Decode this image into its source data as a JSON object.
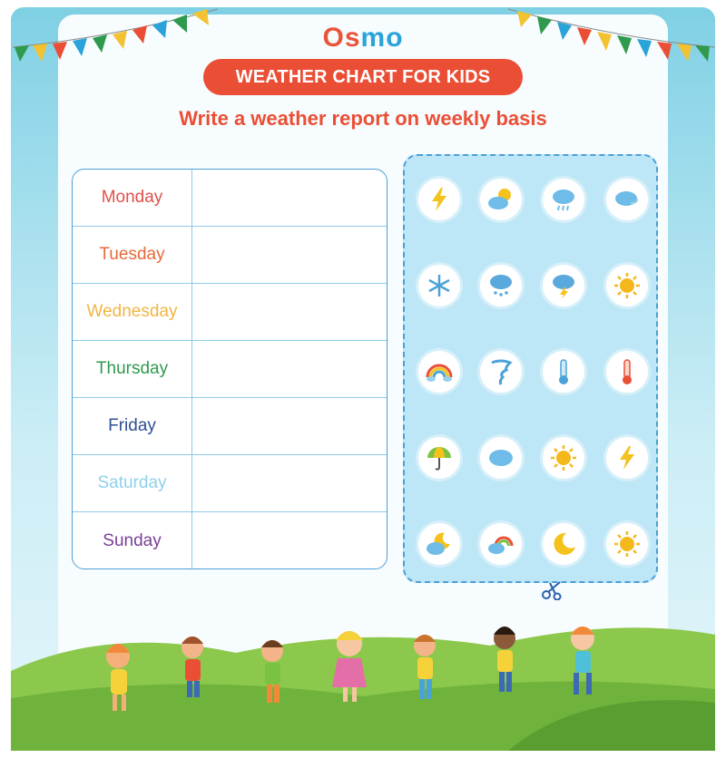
{
  "brand": {
    "logo_prefix": "Os",
    "logo_suffix": "mo"
  },
  "header": {
    "banner": "WEATHER CHART FOR KIDS",
    "subtitle": "Write a weather report on weekly basis"
  },
  "days": [
    {
      "label": "Monday",
      "color": "#e0504a"
    },
    {
      "label": "Tuesday",
      "color": "#e56a3a"
    },
    {
      "label": "Wednesday",
      "color": "#f2b544"
    },
    {
      "label": "Thursday",
      "color": "#2f9a4d"
    },
    {
      "label": "Friday",
      "color": "#2d4f95"
    },
    {
      "label": "Saturday",
      "color": "#8ed1ea"
    },
    {
      "label": "Sunday",
      "color": "#7a3f95"
    }
  ],
  "stickers": [
    [
      "lightning-icon",
      "sun-cloud-icon",
      "cloud-rain-icon",
      "cloud-wind-icon"
    ],
    [
      "snowflake-icon",
      "rain-cloud-icon",
      "storm-cloud-icon",
      "sun-icon"
    ],
    [
      "rainbow-icon",
      "tornado-icon",
      "thermometer-cold-icon",
      "thermometer-hot-icon"
    ],
    [
      "umbrella-icon",
      "cloud-icon",
      "sun-icon",
      "lightning-icon"
    ],
    [
      "moon-cloud-icon",
      "rainbow-cloud-icon",
      "moon-icon",
      "sun-icon"
    ]
  ],
  "colors": {
    "brand_red": "#ea4f35",
    "brand_blue": "#29a3d8",
    "table_border": "#4d9fd6"
  }
}
